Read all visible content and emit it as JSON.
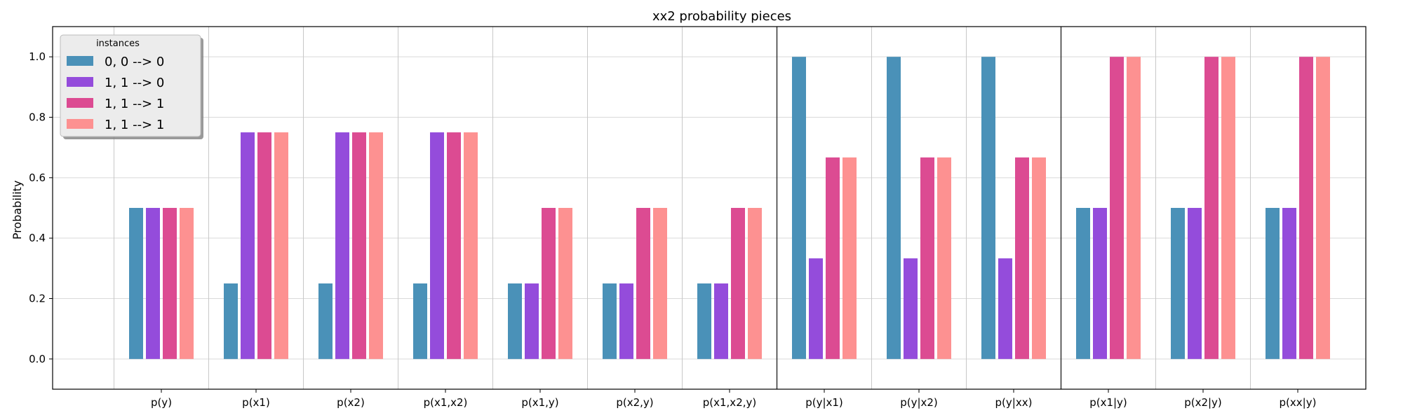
{
  "chart_data": {
    "type": "bar",
    "title": "xx2 probability pieces",
    "xlabel": "",
    "ylabel": "Probability",
    "ylim": [
      -0.1,
      1.1
    ],
    "yticks": [
      "0.0",
      "0.2",
      "0.4",
      "0.6",
      "0.8",
      "1.0"
    ],
    "grid": true,
    "categories": [
      "p(y)",
      "p(x1)",
      "p(x2)",
      "p(x1,x2)",
      "p(x1,y)",
      "p(x2,y)",
      "p(x1,x2,y)",
      "p(y|x1)",
      "p(y|x2)",
      "p(y|xx)",
      "p(x1|y)",
      "p(x2|y)",
      "p(xx|y)"
    ],
    "group_separators_after": [
      "p(x1,x2,y)",
      "p(y|xx)"
    ],
    "legend": {
      "title": "instances",
      "placement": "top-left"
    },
    "series": [
      {
        "name": "0, 0 --> 0",
        "color": "#4a91b8",
        "values": [
          0.5,
          0.25,
          0.25,
          0.25,
          0.25,
          0.25,
          0.25,
          1.0,
          1.0,
          1.0,
          0.5,
          0.5,
          0.5
        ]
      },
      {
        "name": "1, 1 --> 0",
        "color": "#944cdb",
        "values": [
          0.5,
          0.75,
          0.75,
          0.75,
          0.25,
          0.25,
          0.25,
          0.333,
          0.333,
          0.333,
          0.5,
          0.5,
          0.5
        ]
      },
      {
        "name": "1, 1 --> 1",
        "color": "#dc4b92",
        "values": [
          0.5,
          0.75,
          0.75,
          0.75,
          0.5,
          0.5,
          0.5,
          0.667,
          0.667,
          0.667,
          1.0,
          1.0,
          1.0
        ]
      },
      {
        "name": "1, 1 --> 1",
        "color": "#fd9191",
        "values": [
          0.5,
          0.75,
          0.75,
          0.75,
          0.5,
          0.5,
          0.5,
          0.667,
          0.667,
          0.667,
          1.0,
          1.0,
          1.0
        ]
      }
    ]
  }
}
